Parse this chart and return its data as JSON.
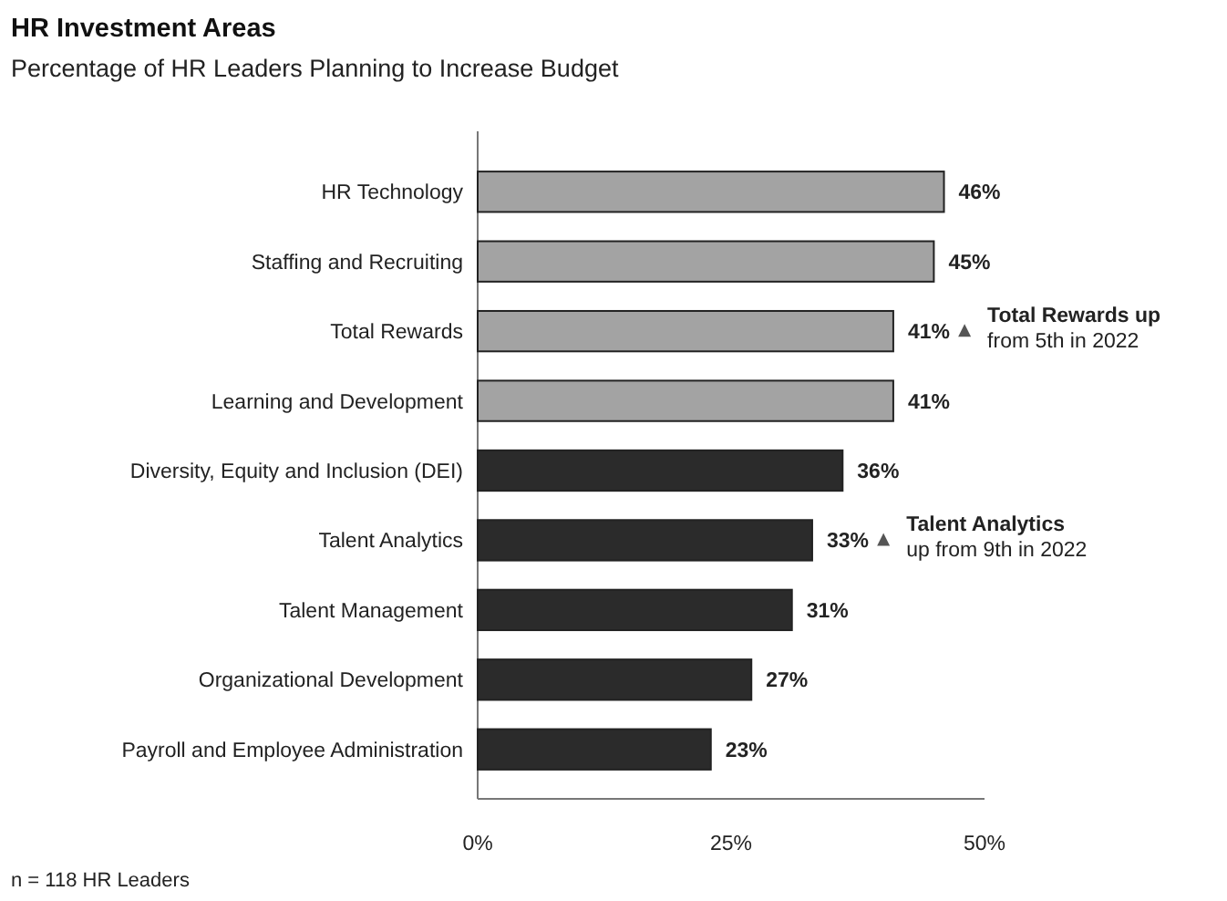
{
  "chart_data": {
    "type": "bar",
    "orientation": "horizontal",
    "title": "HR Investment Areas",
    "subtitle": "Percentage of HR Leaders Planning to Increase Budget",
    "categories": [
      "HR Technology",
      "Staffing and Recruiting",
      "Total Rewards",
      "Learning and Development",
      "Diversity, Equity and Inclusion (DEI)",
      "Talent Analytics",
      "Talent Management",
      "Organizational Development",
      "Payroll and Employee Administration"
    ],
    "values": [
      46,
      45,
      41,
      41,
      36,
      33,
      31,
      27,
      23
    ],
    "value_labels": [
      "46%",
      "45%",
      "41%",
      "41%",
      "36%",
      "33%",
      "31%",
      "27%",
      "23%"
    ],
    "colors": [
      "#a3a3a3",
      "#a3a3a3",
      "#a3a3a3",
      "#a3a3a3",
      "#2b2b2b",
      "#2b2b2b",
      "#2b2b2b",
      "#2b2b2b",
      "#2b2b2b"
    ],
    "xlim": [
      0,
      50
    ],
    "xticks": [
      {
        "value": 0,
        "label": "0%"
      },
      {
        "value": 25,
        "label": "25%"
      },
      {
        "value": 50,
        "label": "50%"
      }
    ],
    "grid": false,
    "legend": false,
    "annotations": [
      "Total Rewards up\nfrom 5th in 2022",
      "Talent Analytics\nup from 9th in 2022",
      "n = 118 HR Leaders"
    ]
  }
}
